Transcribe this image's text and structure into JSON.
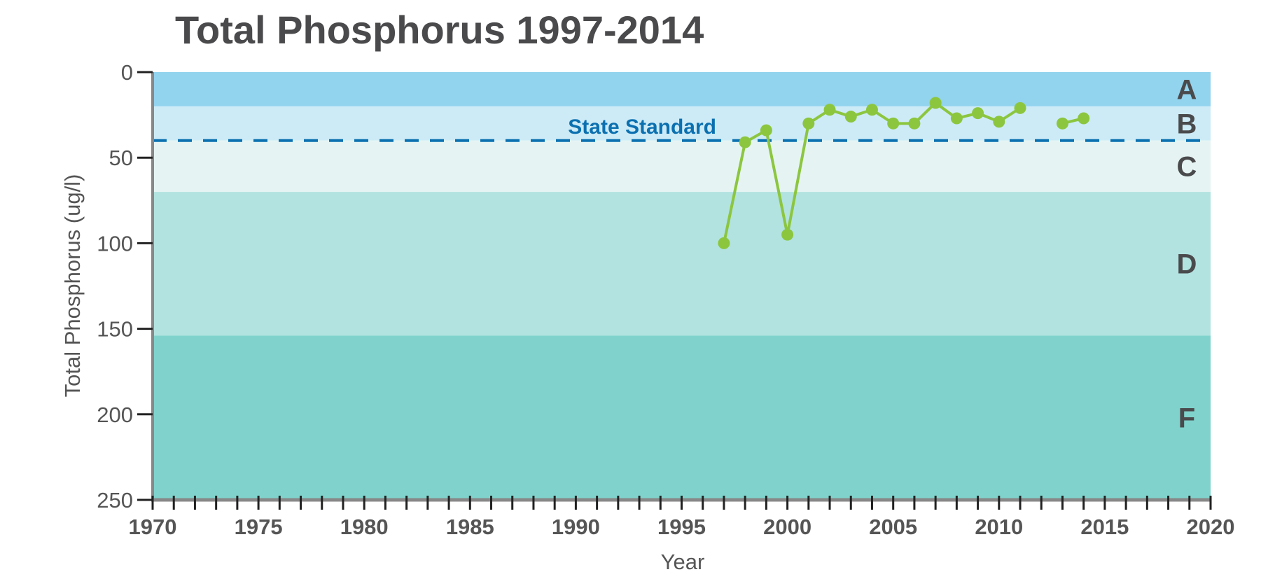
{
  "chart_data": {
    "type": "line",
    "title": "Total Phosphorus 1997-2014",
    "xlabel": "Year",
    "ylabel": "Total Phosphorus (ug/l)",
    "xlim": [
      1970,
      2020
    ],
    "ylim": [
      0,
      250
    ],
    "y_inverted": true,
    "x_ticks": [
      "1970",
      "1975",
      "1980",
      "1985",
      "1990",
      "1995",
      "2000",
      "2005",
      "2010",
      "2015",
      "2020"
    ],
    "y_ticks": [
      "0",
      "50",
      "100",
      "150",
      "200",
      "250"
    ],
    "grid": false,
    "series": [
      {
        "name": "Total Phosphorus",
        "color": "#8cc63f",
        "segments": [
          {
            "x": [
              1997,
              1998,
              1999,
              2000,
              2001,
              2002,
              2003,
              2004,
              2005,
              2006,
              2007,
              2008,
              2009,
              2010,
              2011
            ],
            "y": [
              100,
              41,
              34,
              95,
              30,
              22,
              26,
              22,
              30,
              30,
              18,
              27,
              24,
              29,
              21
            ]
          },
          {
            "x": [
              2013,
              2014
            ],
            "y": [
              30,
              27
            ]
          }
        ]
      }
    ],
    "bands": [
      {
        "label": "A",
        "from": 0,
        "to": 20,
        "color": "#92d3ee"
      },
      {
        "label": "B",
        "from": 20,
        "to": 40,
        "color": "#cdebf7"
      },
      {
        "label": "C",
        "from": 40,
        "to": 70,
        "color": "#e5f4f3"
      },
      {
        "label": "D",
        "from": 70,
        "to": 154,
        "color": "#b2e3e0"
      },
      {
        "label": "F",
        "from": 154,
        "to": 250,
        "color": "#7fd3cc"
      }
    ],
    "reference_line": {
      "label": "State Standard",
      "value": 40,
      "color": "#0b70b0"
    }
  }
}
